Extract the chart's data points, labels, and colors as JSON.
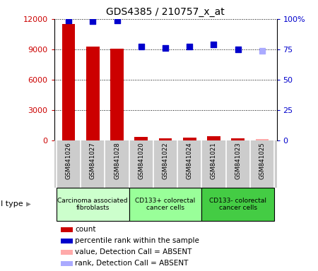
{
  "title": "GDS4385 / 210757_x_at",
  "samples": [
    "GSM841026",
    "GSM841027",
    "GSM841028",
    "GSM841020",
    "GSM841022",
    "GSM841024",
    "GSM841021",
    "GSM841023",
    "GSM841025"
  ],
  "count_values": [
    11500,
    9300,
    9050,
    300,
    200,
    250,
    400,
    200,
    null
  ],
  "rank_values": [
    99,
    98,
    99,
    77,
    76,
    77,
    79,
    75,
    null
  ],
  "count_absent": [
    null,
    null,
    null,
    null,
    null,
    null,
    null,
    null,
    150
  ],
  "rank_absent": [
    null,
    null,
    null,
    null,
    null,
    null,
    null,
    null,
    74
  ],
  "count_color": "#cc0000",
  "rank_color": "#0000cc",
  "count_absent_color": "#ffaaaa",
  "rank_absent_color": "#aaaaff",
  "ylim_left": [
    0,
    12000
  ],
  "ylim_right": [
    0,
    100
  ],
  "yticks_left": [
    0,
    3000,
    6000,
    9000,
    12000
  ],
  "ytick_labels_left": [
    "0",
    "3000",
    "6000",
    "9000",
    "12000"
  ],
  "yticks_right": [
    0,
    25,
    50,
    75,
    100
  ],
  "ytick_labels_right": [
    "0",
    "25",
    "50",
    "75",
    "100%"
  ],
  "cell_groups": [
    {
      "label": "Carcinoma associated\nfibroblasts",
      "start": 0,
      "end": 3,
      "color": "#ccffcc"
    },
    {
      "label": "CD133+ colorectal\ncancer cells",
      "start": 3,
      "end": 6,
      "color": "#99ff99"
    },
    {
      "label": "CD133- colorectal\ncancer cells",
      "start": 6,
      "end": 9,
      "color": "#44cc44"
    }
  ],
  "legend_items": [
    {
      "color": "#cc0000",
      "label": "count"
    },
    {
      "color": "#0000cc",
      "label": "percentile rank within the sample"
    },
    {
      "color": "#ffaaaa",
      "label": "value, Detection Call = ABSENT"
    },
    {
      "color": "#aaaaff",
      "label": "rank, Detection Call = ABSENT"
    }
  ],
  "cell_type_label": "cell type",
  "bar_width": 0.55,
  "marker_size": 7,
  "background_color": "#ffffff",
  "label_bg_color": "#cccccc",
  "label_divider_color": "#ffffff"
}
